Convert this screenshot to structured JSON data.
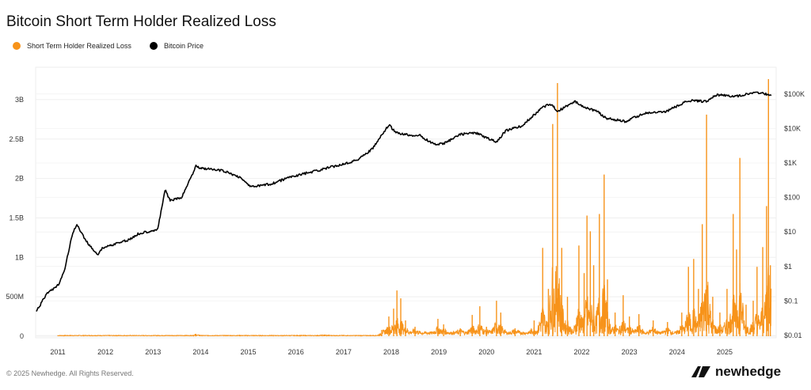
{
  "chart_data": {
    "type": "line",
    "title": "Bitcoin Short Term Holder Realized Loss",
    "legend_position": "top-left",
    "grid": true,
    "x_ticks": [
      "2011",
      "2012",
      "2013",
      "2014",
      "2015",
      "2016",
      "2017",
      "2018",
      "2019",
      "2020",
      "2021",
      "2022",
      "2023",
      "2024",
      "2025"
    ],
    "xlim": [
      2010.55,
      2026.0
    ],
    "left_axis": {
      "ticks": [
        "0",
        "500M",
        "1B",
        "1.5B",
        "2B",
        "2.5B",
        "3B"
      ],
      "tick_values": [
        0,
        0.5,
        1,
        1.5,
        2,
        2.5,
        3
      ],
      "unit": "billions USD",
      "ylim": [
        0,
        3.4
      ]
    },
    "right_axis": {
      "scale": "log",
      "ticks": [
        "$0.01",
        "$0.1",
        "$1",
        "$10",
        "$100",
        "$1K",
        "$10K",
        "$100K"
      ],
      "tick_values": [
        0.01,
        0.1,
        1,
        10,
        100,
        1000,
        10000,
        100000
      ],
      "ylim": [
        0.01,
        300000
      ]
    },
    "series": [
      {
        "name": "Short Term Holder Realized Loss",
        "axis": "left",
        "color": "#F7931A",
        "style": "spikes",
        "points": [
          [
            2013.9,
            0.03
          ],
          [
            2016.6,
            0.02
          ],
          [
            2017.8,
            0.08
          ],
          [
            2017.95,
            0.25
          ],
          [
            2018.05,
            0.35
          ],
          [
            2018.12,
            0.58
          ],
          [
            2018.2,
            0.48
          ],
          [
            2018.3,
            0.2
          ],
          [
            2018.5,
            0.12
          ],
          [
            2018.98,
            0.22
          ],
          [
            2019.1,
            0.15
          ],
          [
            2019.45,
            0.1
          ],
          [
            2019.7,
            0.27
          ],
          [
            2019.86,
            0.38
          ],
          [
            2020.0,
            0.12
          ],
          [
            2020.21,
            0.45
          ],
          [
            2020.3,
            0.3
          ],
          [
            2020.6,
            0.1
          ],
          [
            2021.0,
            0.2
          ],
          [
            2021.18,
            1.12
          ],
          [
            2021.3,
            0.6
          ],
          [
            2021.39,
            2.69
          ],
          [
            2021.49,
            3.21
          ],
          [
            2021.58,
            1.12
          ],
          [
            2021.7,
            0.5
          ],
          [
            2021.94,
            1.15
          ],
          [
            2022.05,
            0.8
          ],
          [
            2022.11,
            1.53
          ],
          [
            2022.18,
            1.33
          ],
          [
            2022.25,
            0.9
          ],
          [
            2022.37,
            1.55
          ],
          [
            2022.47,
            2.05
          ],
          [
            2022.54,
            0.72
          ],
          [
            2022.7,
            0.3
          ],
          [
            2022.87,
            0.52
          ],
          [
            2023.0,
            0.25
          ],
          [
            2023.2,
            0.28
          ],
          [
            2023.5,
            0.2
          ],
          [
            2023.8,
            0.18
          ],
          [
            2024.1,
            0.3
          ],
          [
            2024.24,
            0.88
          ],
          [
            2024.35,
            0.98
          ],
          [
            2024.45,
            0.6
          ],
          [
            2024.53,
            1.42
          ],
          [
            2024.62,
            2.81
          ],
          [
            2024.75,
            0.5
          ],
          [
            2024.9,
            0.3
          ],
          [
            2025.05,
            0.6
          ],
          [
            2025.18,
            1.55
          ],
          [
            2025.25,
            1.1
          ],
          [
            2025.32,
            2.26
          ],
          [
            2025.45,
            0.4
          ],
          [
            2025.6,
            0.45
          ],
          [
            2025.68,
            0.88
          ],
          [
            2025.8,
            1.13
          ],
          [
            2025.88,
            1.65
          ],
          [
            2025.92,
            3.26
          ],
          [
            2025.96,
            0.9
          ]
        ]
      },
      {
        "name": "Bitcoin Price",
        "axis": "right",
        "color": "#000000",
        "points": [
          [
            2010.55,
            0.05
          ],
          [
            2010.78,
            0.17
          ],
          [
            2011.03,
            0.3
          ],
          [
            2011.15,
            0.9
          ],
          [
            2011.3,
            8
          ],
          [
            2011.4,
            17
          ],
          [
            2011.45,
            12
          ],
          [
            2011.6,
            5.3
          ],
          [
            2011.83,
            2.2
          ],
          [
            2011.95,
            3.5
          ],
          [
            2012.2,
            4.5
          ],
          [
            2012.5,
            6
          ],
          [
            2012.7,
            9
          ],
          [
            2013.1,
            12
          ],
          [
            2013.25,
            166
          ],
          [
            2013.36,
            80
          ],
          [
            2013.6,
            100
          ],
          [
            2013.9,
            810
          ],
          [
            2014.03,
            700
          ],
          [
            2014.45,
            600
          ],
          [
            2014.8,
            400
          ],
          [
            2015.07,
            200
          ],
          [
            2015.5,
            250
          ],
          [
            2015.9,
            400
          ],
          [
            2016.45,
            600
          ],
          [
            2016.95,
            900
          ],
          [
            2017.27,
            1200
          ],
          [
            2017.6,
            2500
          ],
          [
            2017.95,
            12600
          ],
          [
            2018.1,
            7500
          ],
          [
            2018.35,
            6500
          ],
          [
            2018.6,
            6200
          ],
          [
            2018.9,
            3500
          ],
          [
            2019.1,
            3600
          ],
          [
            2019.45,
            6800
          ],
          [
            2019.77,
            7500
          ],
          [
            2020.21,
            4000
          ],
          [
            2020.4,
            8500
          ],
          [
            2020.75,
            12000
          ],
          [
            2021.18,
            42000
          ],
          [
            2021.35,
            50000
          ],
          [
            2021.5,
            32000
          ],
          [
            2021.85,
            60000
          ],
          [
            2022.1,
            40000
          ],
          [
            2022.35,
            30000
          ],
          [
            2022.5,
            20000
          ],
          [
            2022.92,
            16000
          ],
          [
            2023.33,
            28000
          ],
          [
            2023.75,
            30000
          ],
          [
            2024.25,
            65000
          ],
          [
            2024.6,
            60000
          ],
          [
            2024.83,
            95000
          ],
          [
            2025.25,
            85000
          ],
          [
            2025.58,
            110000
          ],
          [
            2025.88,
            100000
          ],
          [
            2025.98,
            90000
          ]
        ]
      }
    ]
  },
  "footer": {
    "copyright": "© 2025 Newhedge. All Rights Reserved.",
    "logo_text": "newhedge"
  }
}
